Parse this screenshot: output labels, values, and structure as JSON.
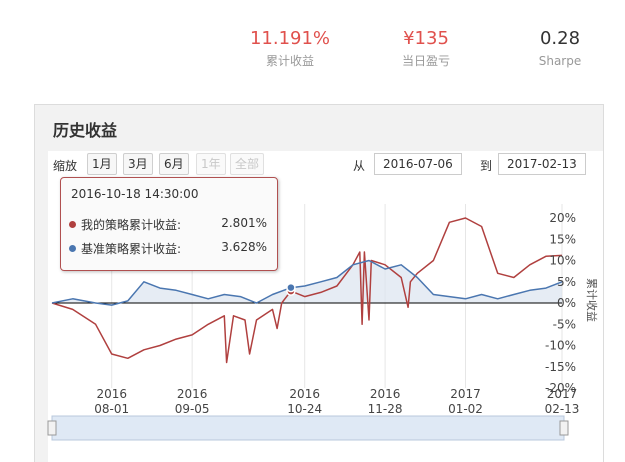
{
  "stats": [
    {
      "value": "11.191%",
      "label": "累计收益",
      "color": "#e0514d"
    },
    {
      "value": "¥135",
      "label": "当日盈亏",
      "color": "#e0514d"
    },
    {
      "value": "0.28",
      "label": "Sharpe",
      "color": "#333333"
    }
  ],
  "panel": {
    "title": "历史收益"
  },
  "toolbar": {
    "zoom_label": "缩放",
    "zoom_buttons": [
      {
        "label": "1月",
        "enabled": true
      },
      {
        "label": "3月",
        "enabled": true
      },
      {
        "label": "6月",
        "enabled": true
      },
      {
        "label": "1年",
        "enabled": false
      },
      {
        "label": "全部",
        "enabled": false
      }
    ],
    "from_label": "从",
    "from_date": "2016-07-06",
    "to_label": "到",
    "to_date": "2017-02-13"
  },
  "tooltip": {
    "date": "2016-10-18 14:30:00",
    "rows": [
      {
        "name": "我的策略累计收益:",
        "value": "2.801%",
        "color": "#b0403f"
      },
      {
        "name": "基准策略累计收益:",
        "value": "3.628%",
        "color": "#4a76b0"
      }
    ]
  },
  "chart_data": {
    "type": "line",
    "x_range": [
      "2016-07-06",
      "2017-02-13"
    ],
    "x_ticks": [
      {
        "year": "2016",
        "date": "08-01"
      },
      {
        "year": "2016",
        "date": "09-05"
      },
      {
        "year": "2016",
        "date": "10-24"
      },
      {
        "year": "2016",
        "date": "11-28"
      },
      {
        "year": "2017",
        "date": "01-02"
      },
      {
        "year": "2017",
        "date": "02-13"
      }
    ],
    "y_ticks": [
      "20%",
      "15%",
      "10%",
      "5%",
      "0%",
      "-5%",
      "-10%",
      "-15%",
      "-20%"
    ],
    "ylabel": "累计收益",
    "ylim": [
      -20,
      20
    ],
    "series": [
      {
        "name": "我的策略累计收益",
        "color": "#b0403f",
        "points": [
          [
            "2016-07-06",
            0
          ],
          [
            "2016-07-15",
            -1.5
          ],
          [
            "2016-07-25",
            -5
          ],
          [
            "2016-08-01",
            -12
          ],
          [
            "2016-08-08",
            -13
          ],
          [
            "2016-08-15",
            -11
          ],
          [
            "2016-08-22",
            -10
          ],
          [
            "2016-08-29",
            -8.5
          ],
          [
            "2016-09-05",
            -7.5
          ],
          [
            "2016-09-12",
            -5
          ],
          [
            "2016-09-19",
            -3
          ],
          [
            "2016-09-20",
            -14
          ],
          [
            "2016-09-23",
            -3
          ],
          [
            "2016-09-28",
            -4
          ],
          [
            "2016-09-30",
            -12
          ],
          [
            "2016-10-03",
            -4
          ],
          [
            "2016-10-10",
            -1.5
          ],
          [
            "2016-10-12",
            -6
          ],
          [
            "2016-10-14",
            0
          ],
          [
            "2016-10-18",
            2.8
          ],
          [
            "2016-10-24",
            1.5
          ],
          [
            "2016-10-31",
            2.5
          ],
          [
            "2016-11-07",
            4
          ],
          [
            "2016-11-14",
            9
          ],
          [
            "2016-11-17",
            12
          ],
          [
            "2016-11-18",
            -5
          ],
          [
            "2016-11-19",
            12
          ],
          [
            "2016-11-21",
            -4
          ],
          [
            "2016-11-22",
            10
          ],
          [
            "2016-11-28",
            9
          ],
          [
            "2016-12-05",
            6
          ],
          [
            "2016-12-08",
            -1
          ],
          [
            "2016-12-09",
            5
          ],
          [
            "2016-12-12",
            7
          ],
          [
            "2016-12-19",
            10
          ],
          [
            "2016-12-26",
            19
          ],
          [
            "2017-01-02",
            20
          ],
          [
            "2017-01-09",
            18
          ],
          [
            "2017-01-16",
            7
          ],
          [
            "2017-01-23",
            6
          ],
          [
            "2017-01-30",
            9
          ],
          [
            "2017-02-06",
            11
          ],
          [
            "2017-02-13",
            11.2
          ]
        ]
      },
      {
        "name": "基准策略累计收益",
        "color": "#4a76b0",
        "points": [
          [
            "2016-07-06",
            0
          ],
          [
            "2016-07-15",
            1
          ],
          [
            "2016-07-25",
            0
          ],
          [
            "2016-08-01",
            -0.5
          ],
          [
            "2016-08-08",
            0.5
          ],
          [
            "2016-08-15",
            5
          ],
          [
            "2016-08-22",
            3.5
          ],
          [
            "2016-08-29",
            3
          ],
          [
            "2016-09-05",
            2
          ],
          [
            "2016-09-12",
            1
          ],
          [
            "2016-09-19",
            2
          ],
          [
            "2016-09-26",
            1.5
          ],
          [
            "2016-10-03",
            0
          ],
          [
            "2016-10-10",
            2
          ],
          [
            "2016-10-18",
            3.6
          ],
          [
            "2016-10-24",
            4
          ],
          [
            "2016-10-31",
            5
          ],
          [
            "2016-11-07",
            6
          ],
          [
            "2016-11-14",
            9
          ],
          [
            "2016-11-21",
            10
          ],
          [
            "2016-11-28",
            8
          ],
          [
            "2016-12-05",
            9
          ],
          [
            "2016-12-12",
            6
          ],
          [
            "2016-12-19",
            2
          ],
          [
            "2016-12-26",
            1.5
          ],
          [
            "2017-01-02",
            1
          ],
          [
            "2017-01-09",
            2
          ],
          [
            "2017-01-16",
            1
          ],
          [
            "2017-01-23",
            2
          ],
          [
            "2017-01-30",
            3
          ],
          [
            "2017-02-06",
            3.5
          ],
          [
            "2017-02-13",
            5
          ]
        ]
      }
    ]
  }
}
